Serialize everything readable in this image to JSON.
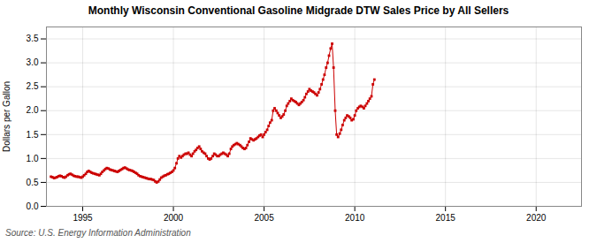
{
  "chart_data": {
    "type": "line",
    "title": "Monthly Wisconsin Conventional Gasoline Midgrade DTW Sales Price by All Sellers",
    "ylabel": "Dollars per Gallon",
    "annotations": [
      "Source: U.S. Energy Information Administration"
    ],
    "color": "#cc0000",
    "marker": "square",
    "grid": true,
    "xlim": [
      1993.0,
      2022.5
    ],
    "ylim": [
      0.0,
      3.75
    ],
    "xticks": [
      1995,
      2000,
      2005,
      2010,
      2015,
      2020
    ],
    "yticks": [
      {
        "value": 0.0,
        "label": "0.0"
      },
      0.5,
      {
        "value": 1.0,
        "label": "1.0"
      },
      1.5,
      {
        "value": 2.0,
        "label": "2.0"
      },
      2.5,
      {
        "value": 3.0,
        "label": "3.0"
      },
      3.5
    ],
    "x": [
      1993.25,
      1993.33,
      1993.42,
      1993.5,
      1993.58,
      1993.67,
      1993.75,
      1993.83,
      1993.92,
      1994.0,
      1994.08,
      1994.17,
      1994.25,
      1994.33,
      1994.42,
      1994.5,
      1994.58,
      1994.67,
      1994.75,
      1994.83,
      1994.92,
      1995.0,
      1995.08,
      1995.17,
      1995.25,
      1995.33,
      1995.42,
      1995.5,
      1995.58,
      1995.67,
      1995.75,
      1995.83,
      1995.92,
      1996.0,
      1996.08,
      1996.17,
      1996.25,
      1996.33,
      1996.42,
      1996.5,
      1996.58,
      1996.67,
      1996.75,
      1996.83,
      1996.92,
      1997.0,
      1997.08,
      1997.17,
      1997.25,
      1997.33,
      1997.42,
      1997.5,
      1997.58,
      1997.67,
      1997.75,
      1997.83,
      1997.92,
      1998.0,
      1998.08,
      1998.17,
      1998.25,
      1998.33,
      1998.42,
      1998.5,
      1998.58,
      1998.67,
      1998.75,
      1998.83,
      1998.92,
      1999.0,
      1999.08,
      1999.17,
      1999.25,
      1999.33,
      1999.42,
      1999.5,
      1999.58,
      1999.67,
      1999.75,
      1999.83,
      1999.92,
      2000.0,
      2000.08,
      2000.17,
      2000.25,
      2000.33,
      2000.42,
      2000.5,
      2000.58,
      2000.67,
      2000.75,
      2000.83,
      2000.92,
      2001.0,
      2001.08,
      2001.17,
      2001.25,
      2001.33,
      2001.42,
      2001.5,
      2001.58,
      2001.67,
      2001.75,
      2001.83,
      2001.92,
      2002.0,
      2002.08,
      2002.17,
      2002.25,
      2002.33,
      2002.42,
      2002.5,
      2002.58,
      2002.67,
      2002.75,
      2002.83,
      2002.92,
      2003.0,
      2003.08,
      2003.17,
      2003.25,
      2003.33,
      2003.42,
      2003.5,
      2003.58,
      2003.67,
      2003.75,
      2003.83,
      2003.92,
      2004.0,
      2004.08,
      2004.17,
      2004.25,
      2004.33,
      2004.42,
      2004.5,
      2004.58,
      2004.67,
      2004.75,
      2004.83,
      2004.92,
      2005.0,
      2005.08,
      2005.17,
      2005.25,
      2005.33,
      2005.42,
      2005.5,
      2005.58,
      2005.67,
      2005.75,
      2005.83,
      2005.92,
      2006.0,
      2006.08,
      2006.17,
      2006.25,
      2006.33,
      2006.42,
      2006.5,
      2006.58,
      2006.67,
      2006.75,
      2006.83,
      2006.92,
      2007.0,
      2007.08,
      2007.17,
      2007.25,
      2007.33,
      2007.42,
      2007.5,
      2007.58,
      2007.67,
      2007.75,
      2007.83,
      2007.92,
      2008.0,
      2008.08,
      2008.17,
      2008.25,
      2008.33,
      2008.42,
      2008.5,
      2008.58,
      2008.67,
      2008.75,
      2008.83,
      2008.92,
      2009.0,
      2009.08,
      2009.17,
      2009.25,
      2009.33,
      2009.42,
      2009.5,
      2009.58,
      2009.67,
      2009.75,
      2009.83,
      2009.92,
      2010.0,
      2010.08,
      2010.17,
      2010.25,
      2010.33,
      2010.42,
      2010.5,
      2010.58,
      2010.67,
      2010.75,
      2010.83,
      2010.92,
      2011.0,
      2011.08
    ],
    "values": [
      0.62,
      0.61,
      0.59,
      0.6,
      0.61,
      0.63,
      0.64,
      0.63,
      0.61,
      0.6,
      0.62,
      0.65,
      0.67,
      0.68,
      0.66,
      0.64,
      0.63,
      0.62,
      0.62,
      0.61,
      0.6,
      0.62,
      0.65,
      0.68,
      0.72,
      0.74,
      0.72,
      0.7,
      0.69,
      0.68,
      0.67,
      0.66,
      0.65,
      0.68,
      0.72,
      0.75,
      0.78,
      0.8,
      0.79,
      0.77,
      0.76,
      0.75,
      0.74,
      0.73,
      0.72,
      0.74,
      0.76,
      0.78,
      0.8,
      0.81,
      0.79,
      0.77,
      0.76,
      0.75,
      0.74,
      0.72,
      0.7,
      0.68,
      0.65,
      0.63,
      0.62,
      0.61,
      0.6,
      0.59,
      0.58,
      0.57,
      0.57,
      0.56,
      0.55,
      0.52,
      0.5,
      0.52,
      0.56,
      0.6,
      0.62,
      0.64,
      0.65,
      0.67,
      0.68,
      0.7,
      0.72,
      0.75,
      0.8,
      0.9,
      1.0,
      1.05,
      1.02,
      1.05,
      1.08,
      1.1,
      1.1,
      1.12,
      1.08,
      1.05,
      1.1,
      1.15,
      1.18,
      1.22,
      1.25,
      1.2,
      1.15,
      1.12,
      1.1,
      1.05,
      1.0,
      0.98,
      1.0,
      1.05,
      1.1,
      1.08,
      1.05,
      1.05,
      1.08,
      1.1,
      1.12,
      1.1,
      1.08,
      1.05,
      1.1,
      1.2,
      1.25,
      1.28,
      1.3,
      1.32,
      1.3,
      1.28,
      1.25,
      1.22,
      1.2,
      1.22,
      1.28,
      1.35,
      1.42,
      1.4,
      1.38,
      1.4,
      1.42,
      1.45,
      1.48,
      1.5,
      1.45,
      1.5,
      1.55,
      1.6,
      1.68,
      1.75,
      1.8,
      2.0,
      2.05,
      2.0,
      1.95,
      1.9,
      1.85,
      1.88,
      1.92,
      2.0,
      2.1,
      2.15,
      2.2,
      2.25,
      2.22,
      2.2,
      2.18,
      2.15,
      2.12,
      2.15,
      2.18,
      2.22,
      2.28,
      2.35,
      2.4,
      2.45,
      2.42,
      2.4,
      2.38,
      2.35,
      2.32,
      2.38,
      2.45,
      2.55,
      2.65,
      2.75,
      2.9,
      3.0,
      3.15,
      3.3,
      3.4,
      2.9,
      2.0,
      1.5,
      1.45,
      1.52,
      1.6,
      1.7,
      1.8,
      1.85,
      1.9,
      1.88,
      1.85,
      1.8,
      1.82,
      1.9,
      2.0,
      2.05,
      2.08,
      2.1,
      2.08,
      2.05,
      2.1,
      2.15,
      2.2,
      2.25,
      2.3,
      2.55,
      2.65
    ]
  }
}
